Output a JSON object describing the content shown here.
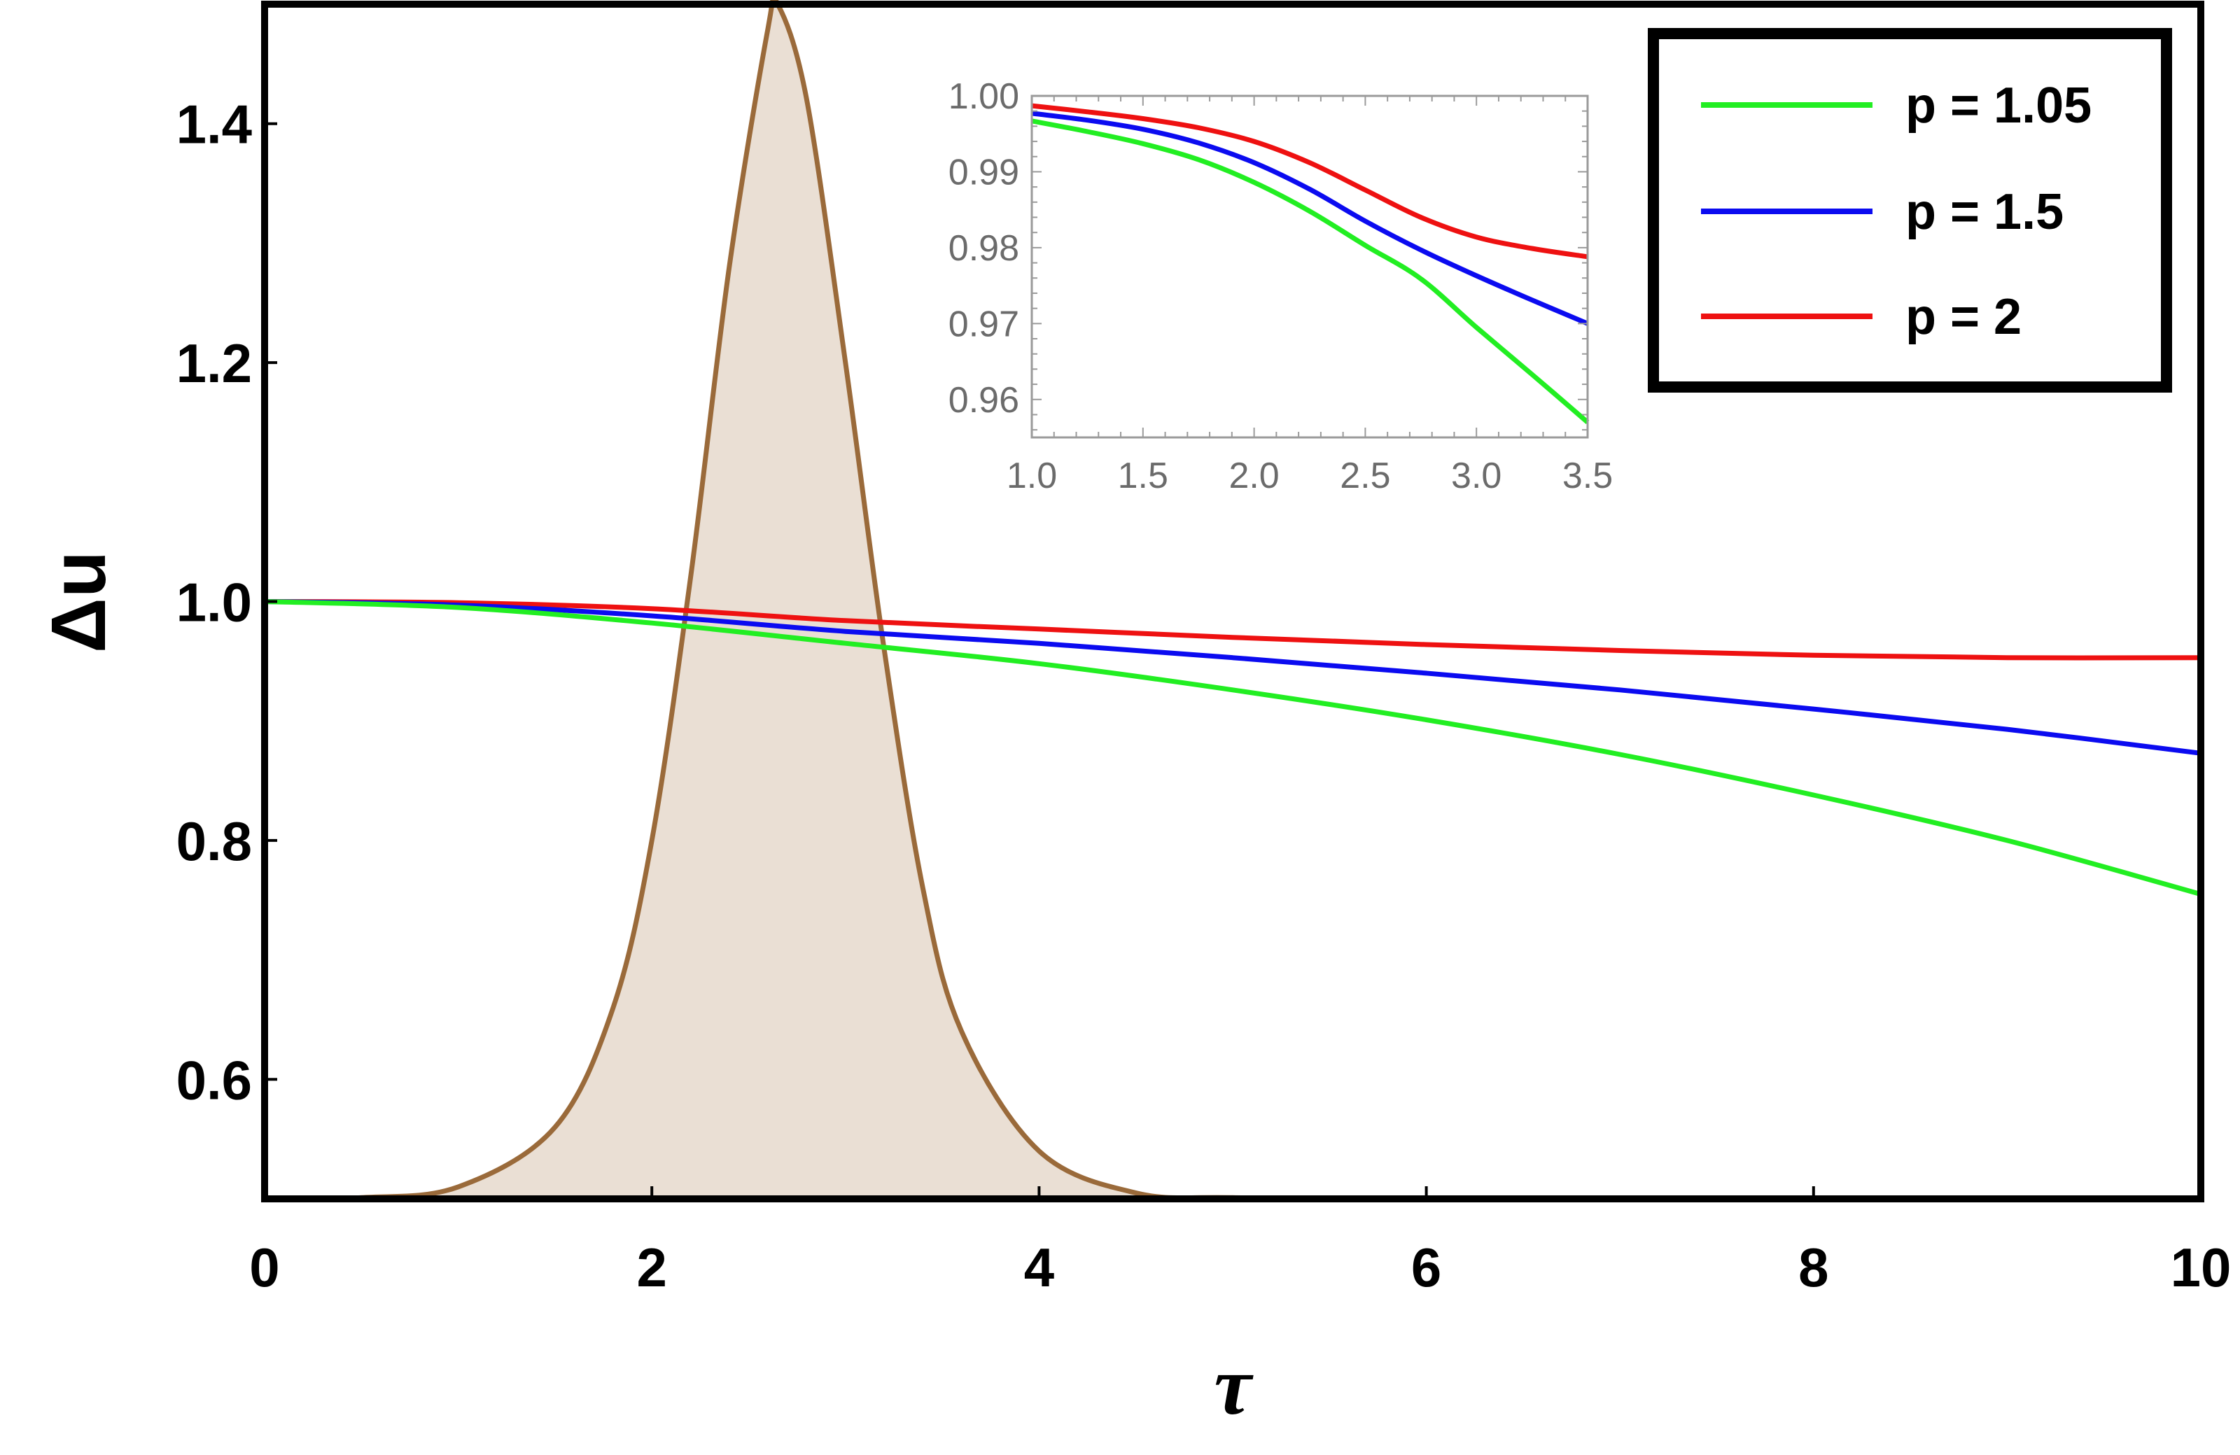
{
  "chart_data": [
    {
      "type": "line",
      "title": "",
      "xlabel": "τ",
      "ylabel": "Δu",
      "xlim": [
        0,
        10
      ],
      "ylim": [
        0.5,
        1.5
      ],
      "xticks": [
        "0",
        "2",
        "4",
        "6",
        "8",
        "10"
      ],
      "yticks": [
        "0.6",
        "0.8",
        "1.0",
        "1.2",
        "1.4"
      ],
      "grid": false,
      "legend_position": "top-right",
      "x": [
        0,
        1,
        2,
        3,
        4,
        5,
        6,
        7,
        8,
        9,
        10
      ],
      "series": [
        {
          "name": "p = 1.05",
          "color": "#22ee22",
          "values": [
            1.0,
            0.995,
            0.982,
            0.965,
            0.948,
            0.926,
            0.901,
            0.872,
            0.838,
            0.8,
            0.755
          ]
        },
        {
          "name": "p = 1.5",
          "color": "#0b0bf0",
          "values": [
            1.0,
            0.997,
            0.988,
            0.975,
            0.965,
            0.953,
            0.94,
            0.926,
            0.91,
            0.893,
            0.873
          ]
        },
        {
          "name": "p = 2",
          "color": "#ee1111",
          "values": [
            1.0,
            0.999,
            0.994,
            0.984,
            0.977,
            0.97,
            0.964,
            0.959,
            0.955,
            0.953,
            0.953
          ]
        }
      ],
      "pulse": {
        "color": "#9a6a3a",
        "fill": "#eadfd4",
        "x": [
          0,
          0.5,
          1,
          1.5,
          1.8,
          2.0,
          2.2,
          2.4,
          2.6,
          2.65,
          2.8,
          3.0,
          3.2,
          3.4,
          3.6,
          4.0,
          4.5,
          5.0,
          6.0,
          10
        ],
        "y": [
          0.5,
          0.501,
          0.51,
          0.56,
          0.66,
          0.8,
          1.02,
          1.28,
          1.48,
          1.5,
          1.42,
          1.2,
          0.96,
          0.76,
          0.64,
          0.54,
          0.505,
          0.501,
          0.5,
          0.5
        ]
      }
    },
    {
      "type": "line",
      "title": "",
      "xlabel": "",
      "ylabel": "",
      "xlim": [
        1.0,
        3.5
      ],
      "ylim": [
        0.955,
        1.0
      ],
      "xticks": [
        "1.0",
        "1.5",
        "2.0",
        "2.5",
        "3.0",
        "3.5"
      ],
      "yticks": [
        "0.96",
        "0.97",
        "0.98",
        "0.99",
        "1.00"
      ],
      "grid": false,
      "x": [
        1.0,
        1.25,
        1.5,
        1.75,
        2.0,
        2.25,
        2.5,
        2.75,
        3.0,
        3.25,
        3.5
      ],
      "series": [
        {
          "name": "p = 1.05",
          "color": "#22ee22",
          "values": [
            0.9967,
            0.9953,
            0.9937,
            0.9916,
            0.9886,
            0.9848,
            0.9803,
            0.9759,
            0.9695,
            0.9633,
            0.957
          ]
        },
        {
          "name": "p = 1.5",
          "color": "#0b0bf0",
          "values": [
            0.9977,
            0.9968,
            0.9956,
            0.9938,
            0.9912,
            0.9877,
            0.9835,
            0.9797,
            0.9763,
            0.9731,
            0.97
          ]
        },
        {
          "name": "p = 2",
          "color": "#ee1111",
          "values": [
            0.9987,
            0.9979,
            0.997,
            0.9958,
            0.994,
            0.9912,
            0.9876,
            0.984,
            0.9814,
            0.9799,
            0.9788
          ]
        }
      ]
    }
  ],
  "legend": {
    "items": [
      {
        "label": "p = 1.05",
        "color": "#22ee22"
      },
      {
        "label": "p = 1.5",
        "color": "#0b0bf0"
      },
      {
        "label": "p = 2",
        "color": "#ee1111"
      }
    ]
  }
}
